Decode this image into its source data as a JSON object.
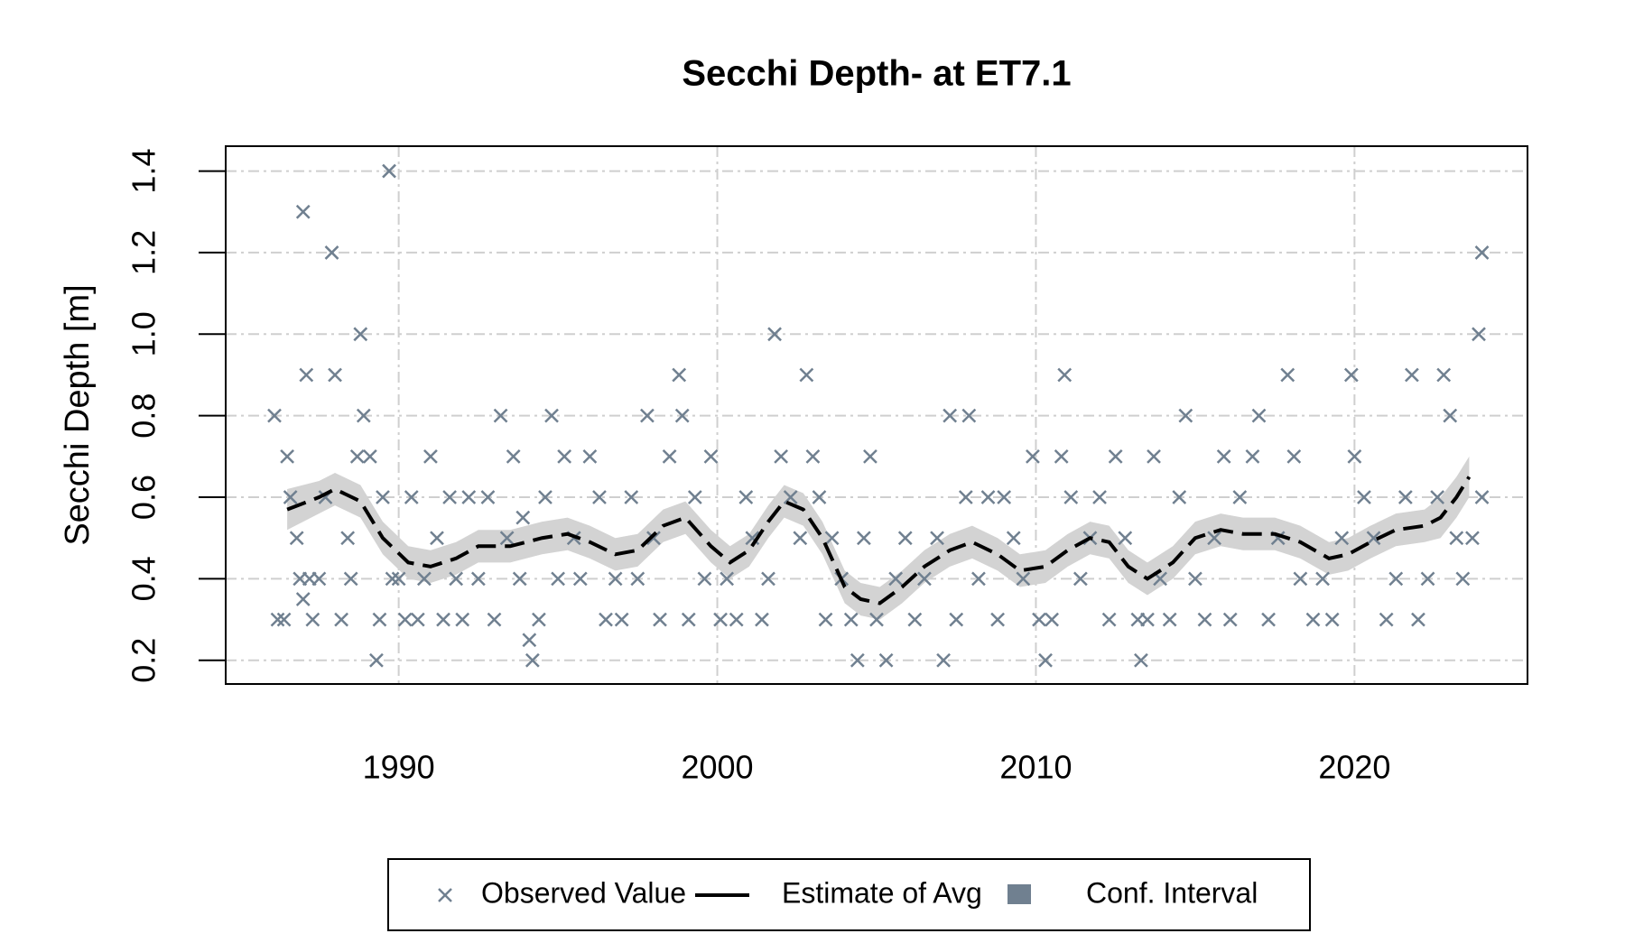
{
  "chart_data": {
    "type": "scatter",
    "title": "Secchi Depth- at ET7.1",
    "y_label": "Secchi Depth [m]",
    "xlim": [
      1984.57,
      2025.43
    ],
    "ylim": [
      0.142,
      1.461
    ],
    "xticks": [
      1990,
      2000,
      2010,
      2020
    ],
    "yticks": [
      0.2,
      0.4,
      0.6,
      0.8,
      {
        "value": 1,
        "label": "1.0"
      },
      1.2,
      1.4
    ],
    "grid": true,
    "series": [
      {
        "name": "Observed Value",
        "type": "scatter",
        "color": "#708090",
        "x": [
          1986.1,
          1986.2,
          1986.4,
          1986.5,
          1986.6,
          1986.8,
          1986.9,
          1987.0,
          1987.0,
          1987.1,
          1987.2,
          1987.3,
          1987.5,
          1987.7,
          1987.9,
          1988.0,
          1988.2,
          1988.4,
          1988.5,
          1988.7,
          1988.8,
          1988.9,
          1989.1,
          1989.3,
          1989.4,
          1989.5,
          1989.7,
          1989.8,
          1990.0,
          1990.2,
          1990.4,
          1990.6,
          1990.8,
          1991.0,
          1991.2,
          1991.4,
          1991.6,
          1991.8,
          1992.0,
          1992.2,
          1992.5,
          1992.8,
          1993.0,
          1993.2,
          1993.4,
          1993.6,
          1993.8,
          1993.9,
          1994.1,
          1994.2,
          1994.4,
          1994.6,
          1994.8,
          1995.0,
          1995.2,
          1995.5,
          1995.7,
          1996.0,
          1996.3,
          1996.5,
          1996.8,
          1997.0,
          1997.3,
          1997.5,
          1997.8,
          1998.0,
          1998.2,
          1998.5,
          1998.8,
          1998.9,
          1999.1,
          1999.3,
          1999.6,
          1999.8,
          2000.1,
          2000.3,
          2000.6,
          2000.9,
          2001.1,
          2001.4,
          2001.6,
          2001.8,
          2002.0,
          2002.3,
          2002.6,
          2002.8,
          2003.0,
          2003.2,
          2003.4,
          2003.6,
          2003.9,
          2004.2,
          2004.4,
          2004.6,
          2004.8,
          2005.0,
          2005.3,
          2005.6,
          2005.9,
          2006.2,
          2006.5,
          2006.9,
          2007.1,
          2007.3,
          2007.5,
          2007.8,
          2007.9,
          2008.2,
          2008.5,
          2008.8,
          2009.0,
          2009.3,
          2009.6,
          2009.9,
          2010.1,
          2010.3,
          2010.5,
          2010.8,
          2010.9,
          2011.1,
          2011.4,
          2011.7,
          2012.0,
          2012.3,
          2012.5,
          2012.8,
          2013.2,
          2013.3,
          2013.5,
          2013.7,
          2013.9,
          2014.2,
          2014.5,
          2014.7,
          2015.0,
          2015.3,
          2015.6,
          2015.9,
          2016.1,
          2016.4,
          2016.8,
          2017.0,
          2017.3,
          2017.6,
          2017.9,
          2018.1,
          2018.3,
          2018.7,
          2019.0,
          2019.3,
          2019.6,
          2019.9,
          2020.0,
          2020.3,
          2020.6,
          2021.0,
          2021.3,
          2021.6,
          2021.8,
          2022.0,
          2022.3,
          2022.6,
          2022.8,
          2023.0,
          2023.2,
          2023.4,
          2023.7,
          2023.9,
          2024.0,
          2024.0
        ],
        "values": [
          0.8,
          0.3,
          0.3,
          0.7,
          0.6,
          0.5,
          0.4,
          0.35,
          1.3,
          0.9,
          0.4,
          0.3,
          0.4,
          0.6,
          1.2,
          0.9,
          0.3,
          0.5,
          0.4,
          0.7,
          1.0,
          0.8,
          0.7,
          0.2,
          0.3,
          0.6,
          1.4,
          0.4,
          0.4,
          0.3,
          0.6,
          0.3,
          0.4,
          0.7,
          0.5,
          0.3,
          0.6,
          0.4,
          0.3,
          0.6,
          0.4,
          0.6,
          0.3,
          0.8,
          0.5,
          0.7,
          0.4,
          0.55,
          0.25,
          0.2,
          0.3,
          0.6,
          0.8,
          0.4,
          0.7,
          0.5,
          0.4,
          0.7,
          0.6,
          0.3,
          0.4,
          0.3,
          0.6,
          0.4,
          0.8,
          0.5,
          0.3,
          0.7,
          0.9,
          0.8,
          0.3,
          0.6,
          0.4,
          0.7,
          0.3,
          0.4,
          0.3,
          0.6,
          0.5,
          0.3,
          0.4,
          1.0,
          0.7,
          0.6,
          0.5,
          0.9,
          0.7,
          0.6,
          0.3,
          0.5,
          0.4,
          0.3,
          0.2,
          0.5,
          0.7,
          0.3,
          0.2,
          0.4,
          0.5,
          0.3,
          0.4,
          0.5,
          0.2,
          0.8,
          0.3,
          0.6,
          0.8,
          0.4,
          0.6,
          0.3,
          0.6,
          0.5,
          0.4,
          0.7,
          0.3,
          0.2,
          0.3,
          0.7,
          0.9,
          0.6,
          0.4,
          0.5,
          0.6,
          0.3,
          0.7,
          0.5,
          0.3,
          0.2,
          0.3,
          0.7,
          0.4,
          0.3,
          0.6,
          0.8,
          0.4,
          0.3,
          0.5,
          0.7,
          0.3,
          0.6,
          0.7,
          0.8,
          0.3,
          0.5,
          0.9,
          0.7,
          0.4,
          0.3,
          0.4,
          0.3,
          0.5,
          0.9,
          0.7,
          0.6,
          0.5,
          0.3,
          0.4,
          0.6,
          0.9,
          0.3,
          0.4,
          0.6,
          0.9,
          0.8,
          0.5,
          0.4,
          0.5,
          1.0,
          1.2,
          0.6
        ]
      },
      {
        "name": "Estimate of Avg",
        "type": "line",
        "color": "#000000",
        "x": [
          1986.5,
          1987.5,
          1988,
          1988.8,
          1989.5,
          1990.3,
          1991,
          1991.8,
          1992.5,
          1993.5,
          1994.5,
          1995.3,
          1996,
          1996.8,
          1997.5,
          1998.3,
          1999,
          1999.8,
          2000.4,
          2001,
          2001.6,
          2002.1,
          2002.7,
          2003.3,
          2004,
          2004.5,
          2005.1,
          2005.8,
          2006.5,
          2007.3,
          2008,
          2008.8,
          2009.5,
          2010.3,
          2011,
          2011.7,
          2012.3,
          2012.9,
          2013.5,
          2014.3,
          2015,
          2015.8,
          2016.5,
          2017.5,
          2018.3,
          2019.2,
          2019.8,
          2020.5,
          2021.3,
          2022.2,
          2022.7,
          2023.2,
          2023.6
        ],
        "values": [
          0.57,
          0.6,
          0.62,
          0.59,
          0.5,
          0.44,
          0.43,
          0.45,
          0.48,
          0.48,
          0.5,
          0.51,
          0.49,
          0.46,
          0.47,
          0.53,
          0.55,
          0.48,
          0.44,
          0.47,
          0.54,
          0.59,
          0.57,
          0.5,
          0.38,
          0.35,
          0.34,
          0.38,
          0.43,
          0.47,
          0.49,
          0.46,
          0.42,
          0.43,
          0.47,
          0.5,
          0.49,
          0.43,
          0.4,
          0.44,
          0.5,
          0.52,
          0.51,
          0.51,
          0.49,
          0.45,
          0.46,
          0.49,
          0.52,
          0.53,
          0.55,
          0.6,
          0.65
        ]
      },
      {
        "name": "Conf. Interval",
        "type": "band",
        "color": "#708090",
        "fill": "#d3d3d3",
        "x": [
          1986.5,
          1987.5,
          1988,
          1988.8,
          1989.5,
          1990.3,
          1991,
          1991.8,
          1992.5,
          1993.5,
          1994.5,
          1995.3,
          1996,
          1996.8,
          1997.5,
          1998.3,
          1999,
          1999.8,
          2000.4,
          2001,
          2001.6,
          2002.1,
          2002.7,
          2003.3,
          2004,
          2004.5,
          2005.1,
          2005.8,
          2006.5,
          2007.3,
          2008,
          2008.8,
          2009.5,
          2010.3,
          2011,
          2011.7,
          2012.3,
          2012.9,
          2013.5,
          2014.3,
          2015,
          2015.8,
          2016.5,
          2017.5,
          2018.3,
          2019.2,
          2019.8,
          2020.5,
          2021.3,
          2022.2,
          2022.7,
          2023.2,
          2023.6
        ],
        "lower": [
          0.52,
          0.56,
          0.58,
          0.55,
          0.46,
          0.4,
          0.39,
          0.41,
          0.44,
          0.44,
          0.46,
          0.47,
          0.45,
          0.42,
          0.43,
          0.49,
          0.51,
          0.44,
          0.4,
          0.43,
          0.5,
          0.55,
          0.53,
          0.46,
          0.34,
          0.31,
          0.3,
          0.34,
          0.39,
          0.43,
          0.45,
          0.42,
          0.38,
          0.39,
          0.43,
          0.46,
          0.45,
          0.39,
          0.36,
          0.4,
          0.46,
          0.48,
          0.47,
          0.47,
          0.45,
          0.41,
          0.42,
          0.45,
          0.48,
          0.49,
          0.5,
          0.55,
          0.6
        ],
        "upper": [
          0.62,
          0.64,
          0.66,
          0.63,
          0.54,
          0.48,
          0.47,
          0.49,
          0.52,
          0.52,
          0.54,
          0.55,
          0.53,
          0.5,
          0.51,
          0.57,
          0.59,
          0.52,
          0.48,
          0.51,
          0.58,
          0.63,
          0.61,
          0.54,
          0.42,
          0.39,
          0.38,
          0.42,
          0.47,
          0.51,
          0.53,
          0.5,
          0.46,
          0.47,
          0.51,
          0.54,
          0.53,
          0.47,
          0.44,
          0.48,
          0.54,
          0.56,
          0.55,
          0.55,
          0.53,
          0.49,
          0.5,
          0.53,
          0.56,
          0.57,
          0.6,
          0.65,
          0.7
        ]
      }
    ]
  }
}
